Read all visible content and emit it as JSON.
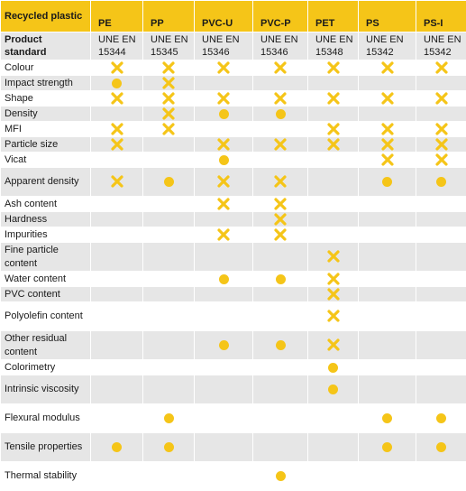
{
  "header": {
    "title": "Recycled plastic",
    "columns": [
      "PE",
      "PP",
      "PVC-U",
      "PVC-P",
      "PET",
      "PS",
      "PS-I"
    ]
  },
  "standard": {
    "label": "Product standard",
    "values": [
      "UNE EN 15344",
      "UNE EN 15345",
      "UNE EN 15346",
      "UNE EN 15346",
      "UNE EN 15348",
      "UNE EN 15342",
      "UNE EN 15342"
    ]
  },
  "legend_marks": {
    "x": "required-property",
    "o": "optional-property"
  },
  "colors": {
    "accent": "#f5c518",
    "band": "#e6e6e6"
  },
  "rows": [
    {
      "label": "Colour",
      "tall": false,
      "cells": [
        "x",
        "x",
        "x",
        "x",
        "x",
        "x",
        "x"
      ]
    },
    {
      "label": "Impact strength",
      "tall": false,
      "cells": [
        "o",
        "x",
        "",
        "",
        "",
        "",
        ""
      ]
    },
    {
      "label": "Shape",
      "tall": false,
      "cells": [
        "x",
        "x",
        "x",
        "x",
        "x",
        "x",
        "x"
      ]
    },
    {
      "label": "Density",
      "tall": false,
      "cells": [
        "",
        "x",
        "o",
        "o",
        "",
        "",
        ""
      ]
    },
    {
      "label": "MFI",
      "tall": false,
      "cells": [
        "x",
        "x",
        "",
        "",
        "x",
        "x",
        "x"
      ]
    },
    {
      "label": "Particle size",
      "tall": false,
      "cells": [
        "x",
        "",
        "x",
        "x",
        "x",
        "x",
        "x"
      ]
    },
    {
      "label": "Vicat",
      "tall": false,
      "cells": [
        "",
        "",
        "o",
        "",
        "",
        "x",
        "x"
      ]
    },
    {
      "label": "Apparent density",
      "tall": true,
      "cells": [
        "x",
        "o",
        "x",
        "x",
        "",
        "o",
        "o"
      ]
    },
    {
      "label": "Ash content",
      "tall": false,
      "cells": [
        "",
        "",
        "x",
        "x",
        "",
        "",
        ""
      ]
    },
    {
      "label": "Hardness",
      "tall": false,
      "cells": [
        "",
        "",
        "",
        "x",
        "",
        "",
        ""
      ]
    },
    {
      "label": "Impurities",
      "tall": false,
      "cells": [
        "",
        "",
        "x",
        "x",
        "",
        "",
        ""
      ]
    },
    {
      "label": "Fine particle content",
      "tall": true,
      "cells": [
        "",
        "",
        "",
        "",
        "x",
        "",
        ""
      ]
    },
    {
      "label": "Water content",
      "tall": false,
      "cells": [
        "",
        "",
        "o",
        "o",
        "x",
        "",
        ""
      ]
    },
    {
      "label": "PVC content",
      "tall": false,
      "cells": [
        "",
        "",
        "",
        "",
        "x",
        "",
        ""
      ]
    },
    {
      "label": "Polyolefin content",
      "tall": true,
      "cells": [
        "",
        "",
        "",
        "",
        "x",
        "",
        ""
      ]
    },
    {
      "label": "Other residual content",
      "tall": true,
      "cells": [
        "",
        "",
        "o",
        "o",
        "x",
        "",
        ""
      ]
    },
    {
      "label": "Colorimetry",
      "tall": false,
      "cells": [
        "",
        "",
        "",
        "",
        "o",
        "",
        ""
      ]
    },
    {
      "label": "Intrinsic viscosity",
      "tall": true,
      "cells": [
        "",
        "",
        "",
        "",
        "o",
        "",
        ""
      ]
    },
    {
      "label": "Flexural modulus",
      "tall": true,
      "cells": [
        "",
        "o",
        "",
        "",
        "",
        "o",
        "o"
      ]
    },
    {
      "label": "Tensile properties",
      "tall": true,
      "cells": [
        "o",
        "o",
        "",
        "",
        "",
        "o",
        "o"
      ]
    },
    {
      "label": "Thermal stability",
      "tall": true,
      "cells": [
        "",
        "",
        "",
        "o",
        "",
        "",
        ""
      ]
    }
  ]
}
